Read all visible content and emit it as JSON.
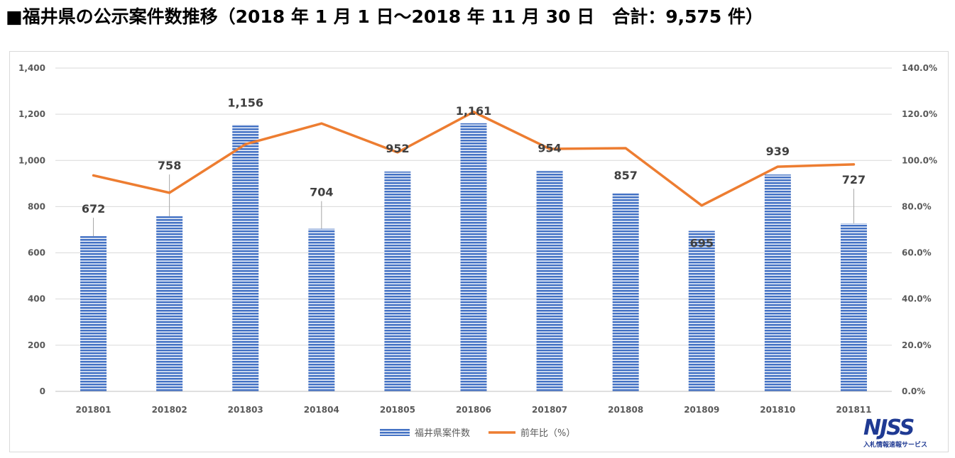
{
  "title": "■福井県の公示案件数推移（2018 年 1 月 1 日〜2018 年 11 月 30 日　合計：9,575 件）",
  "logo": {
    "mark": "NJSS",
    "subtitle": "入札情報速報サービス"
  },
  "chart_data": {
    "type": "bar",
    "categories": [
      "201801",
      "201802",
      "201803",
      "201804",
      "201805",
      "201806",
      "201807",
      "201808",
      "201809",
      "201810",
      "201811"
    ],
    "series": [
      {
        "name": "福井県案件数",
        "type": "bar",
        "axis": "left",
        "values": [
          672,
          758,
          1156,
          704,
          952,
          1161,
          954,
          857,
          695,
          939,
          727
        ],
        "labels": [
          "672",
          "758",
          "1,156",
          "704",
          "952",
          "1,161",
          "954",
          "857",
          "695",
          "939",
          "727"
        ],
        "color": "#4472c4"
      },
      {
        "name": "前年比（%）",
        "type": "line",
        "axis": "right",
        "values": [
          93.5,
          86.0,
          107.0,
          116.0,
          103.5,
          121.0,
          105.0,
          105.3,
          80.5,
          97.3,
          98.3
        ],
        "color": "#ed7d31"
      }
    ],
    "y_left": {
      "min": 0,
      "max": 1400,
      "step": 200,
      "ticks": [
        "0",
        "200",
        "400",
        "600",
        "800",
        "1,000",
        "1,200",
        "1,400"
      ]
    },
    "y_right": {
      "min": 0,
      "max": 140,
      "step": 20,
      "ticks": [
        "0.0%",
        "20.0%",
        "40.0%",
        "60.0%",
        "80.0%",
        "100.0%",
        "120.0%",
        "140.0%"
      ]
    },
    "grid": true,
    "legend_position": "bottom"
  }
}
